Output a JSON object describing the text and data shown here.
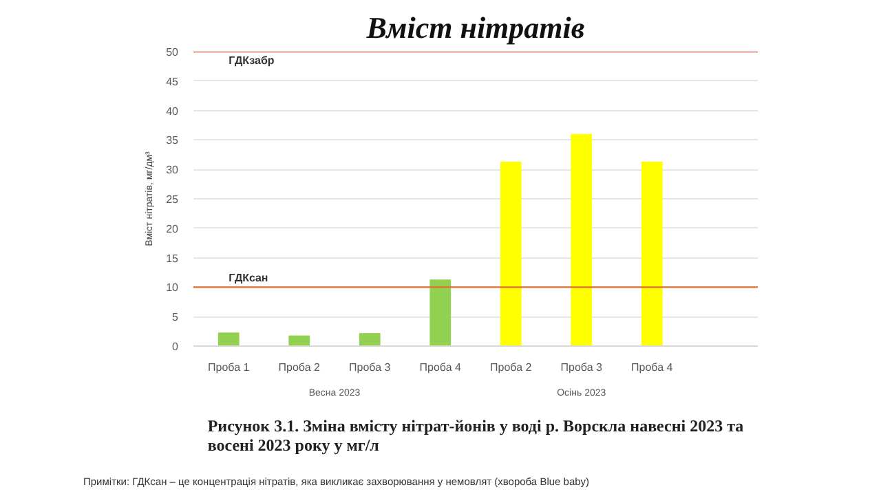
{
  "chart_data": {
    "type": "bar",
    "title": "Вміст нітратів",
    "ylabel": "Вміст нітратів, мг/дм³",
    "categories": [
      "Проба 1",
      "Проба 2",
      "Проба 3",
      "Проба 4",
      "Проба 2",
      "Проба 3",
      "Проба 4",
      null
    ],
    "values": [
      2.3,
      1.8,
      2.2,
      11.3,
      31.3,
      36,
      31.3,
      null
    ],
    "colors": [
      "#92d050",
      "#92d050",
      "#92d050",
      "#92d050",
      "#ffff00",
      "#ffff00",
      "#ffff00",
      "#ffff00"
    ],
    "ylim": [
      0,
      50
    ],
    "yticks": [
      0,
      5,
      10,
      15,
      20,
      25,
      30,
      35,
      40,
      45,
      50
    ],
    "grid": "y",
    "ref_lines": [
      {
        "axis": "y",
        "value": 50,
        "label": "ГДКзабр",
        "color": "#e0503c"
      },
      {
        "axis": "y",
        "value": 10,
        "label": "ГДКсан",
        "color": "#e07030"
      }
    ],
    "annotations": [
      "Весна 2023",
      "Осінь 2023",
      "Рисунок 3.1. Зміна вмісту нітрат-йонів у воді р. Ворскла навесні 2023 та восені 2023 року у мг/л",
      "Примітки: ГДКсан – це концентрація нітратів, яка викликає захворювання у немовлят (хвороба Blue baby)"
    ]
  }
}
